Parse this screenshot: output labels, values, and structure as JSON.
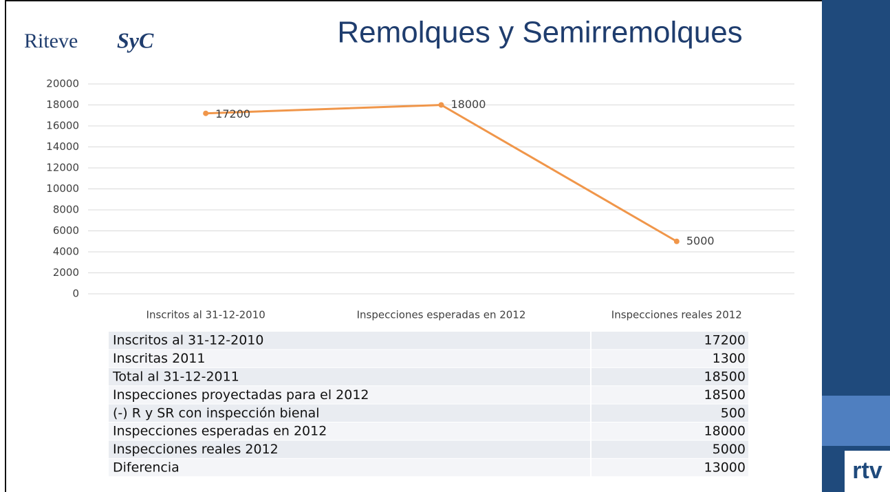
{
  "header": {
    "logo": "Riteve",
    "logo_script": "SyC",
    "title": "Remolques y Semirremolques"
  },
  "chart_data": {
    "type": "line",
    "categories": [
      "Inscritos al 31-12-2010",
      "Inspecciones esperadas en 2012",
      "Inspecciones reales 2012"
    ],
    "values": [
      17200,
      18000,
      5000
    ],
    "color": "#f0964a",
    "ylim": [
      0,
      20000
    ],
    "yticks": [
      0,
      2000,
      4000,
      6000,
      8000,
      10000,
      12000,
      14000,
      16000,
      18000,
      20000
    ],
    "grid": true
  },
  "table": {
    "rows": [
      [
        "Inscritos al 31-12-2010",
        17200
      ],
      [
        "Inscritas 2011",
        1300
      ],
      [
        "Total al 31-12-2011",
        18500
      ],
      [
        "Inspecciones proyectadas para el 2012",
        18500
      ],
      [
        "(-) R y SR con inspección bienal",
        500
      ],
      [
        "Inspecciones esperadas en 2012",
        18000
      ],
      [
        "Inspecciones reales 2012",
        5000
      ],
      [
        "Diferencia",
        13000
      ]
    ]
  },
  "footer": {
    "brand": "rtv"
  }
}
